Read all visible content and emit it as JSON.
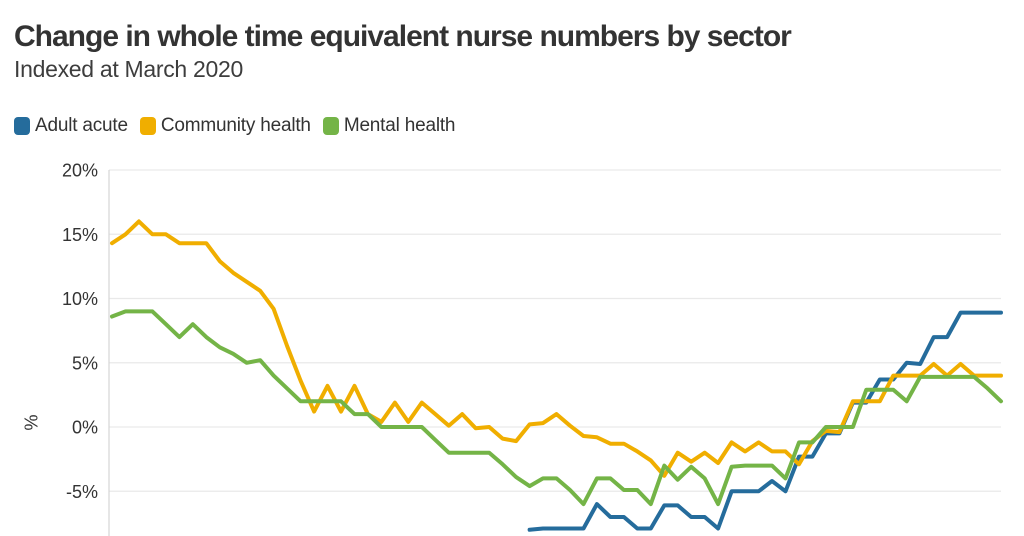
{
  "header": {
    "title": "Change in whole time equivalent nurse numbers by sector",
    "subtitle": "Indexed at March 2020"
  },
  "legend": [
    {
      "label": "Adult acute",
      "color": "#256c9c"
    },
    {
      "label": "Community health",
      "color": "#f0ae00"
    },
    {
      "label": "Mental health",
      "color": "#74b447"
    }
  ],
  "colors": {
    "adult_acute": "#256c9c",
    "community_health": "#f0ae00",
    "mental_health": "#74b447",
    "gridline": "#e9e9e9",
    "axis_line": "#d8d8d8",
    "text": "#333333"
  },
  "chart_data": {
    "type": "line",
    "title": "Change in whole time equivalent nurse numbers by sector",
    "subtitle": "Indexed at March 2020",
    "xlabel": "",
    "ylabel": "%",
    "grid": true,
    "legend_position": "top-left",
    "ylim_visible": [
      -8.5,
      20.8
    ],
    "y_ticks": [
      {
        "label": "20%",
        "value": 20
      },
      {
        "label": "15%",
        "value": 15
      },
      {
        "label": "10%",
        "value": 10
      },
      {
        "label": "5%",
        "value": 5
      },
      {
        "label": "0%",
        "value": 0
      },
      {
        "label": "-5%",
        "value": -5
      }
    ],
    "x_note": "monthly observations; x-axis labels cropped out of view",
    "series": [
      {
        "name": "Adult acute",
        "color": "#256c9c",
        "values": [
          null,
          null,
          null,
          null,
          null,
          null,
          null,
          null,
          null,
          null,
          null,
          null,
          null,
          null,
          null,
          null,
          null,
          null,
          null,
          null,
          null,
          null,
          null,
          null,
          null,
          null,
          null,
          null,
          null,
          null,
          null,
          -8.0,
          -7.9,
          -7.9,
          -7.9,
          -7.9,
          -6.0,
          -7.0,
          -7.0,
          -7.9,
          -7.9,
          -6.1,
          -6.1,
          -7.0,
          -7.0,
          -7.9,
          -5.0,
          -5.0,
          -5.0,
          -4.2,
          -5.0,
          -2.3,
          -2.3,
          -0.5,
          -0.5,
          1.9,
          1.9,
          3.7,
          3.7,
          5.0,
          4.9,
          7.0,
          7.0,
          8.9,
          8.9,
          8.9,
          8.9
        ]
      },
      {
        "name": "Community health",
        "color": "#f0ae00",
        "values": [
          14.3,
          15.0,
          16.0,
          15.0,
          15.0,
          14.3,
          14.3,
          14.3,
          12.9,
          12.0,
          11.3,
          10.6,
          9.2,
          6.3,
          3.6,
          1.2,
          3.2,
          1.2,
          3.2,
          1.0,
          0.4,
          1.9,
          0.4,
          1.9,
          1.0,
          0.1,
          1.0,
          -0.1,
          0.0,
          -0.9,
          -1.1,
          0.2,
          0.3,
          1.0,
          0.1,
          -0.7,
          -0.8,
          -1.3,
          -1.3,
          -1.9,
          -2.6,
          -3.8,
          -2.0,
          -2.7,
          -2.0,
          -2.8,
          -1.2,
          -1.9,
          -1.2,
          -1.9,
          -1.9,
          -2.9,
          -1.1,
          -0.3,
          -0.4,
          2.0,
          2.0,
          2.0,
          4.0,
          4.0,
          4.0,
          4.9,
          4.0,
          4.9,
          4.0,
          4.0,
          4.0
        ]
      },
      {
        "name": "Mental health",
        "color": "#74b447",
        "values": [
          8.6,
          9.0,
          9.0,
          9.0,
          8.0,
          7.0,
          8.0,
          7.0,
          6.2,
          5.7,
          5.0,
          5.2,
          4.0,
          3.0,
          2.0,
          2.0,
          2.0,
          2.0,
          1.0,
          1.0,
          0.0,
          0.0,
          0.0,
          0.0,
          -1.0,
          -2.0,
          -2.0,
          -2.0,
          -2.0,
          -2.9,
          -3.9,
          -4.6,
          -4.0,
          -4.0,
          -4.9,
          -6.0,
          -4.0,
          -4.0,
          -4.9,
          -4.9,
          -6.0,
          -3.0,
          -4.1,
          -3.1,
          -4.0,
          -6.0,
          -3.1,
          -3.0,
          -3.0,
          -3.0,
          -4.0,
          -1.2,
          -1.2,
          0.0,
          0.0,
          0.0,
          2.9,
          2.9,
          2.9,
          2.0,
          3.9,
          3.9,
          3.9,
          3.9,
          3.9,
          3.0,
          2.0
        ]
      }
    ]
  }
}
